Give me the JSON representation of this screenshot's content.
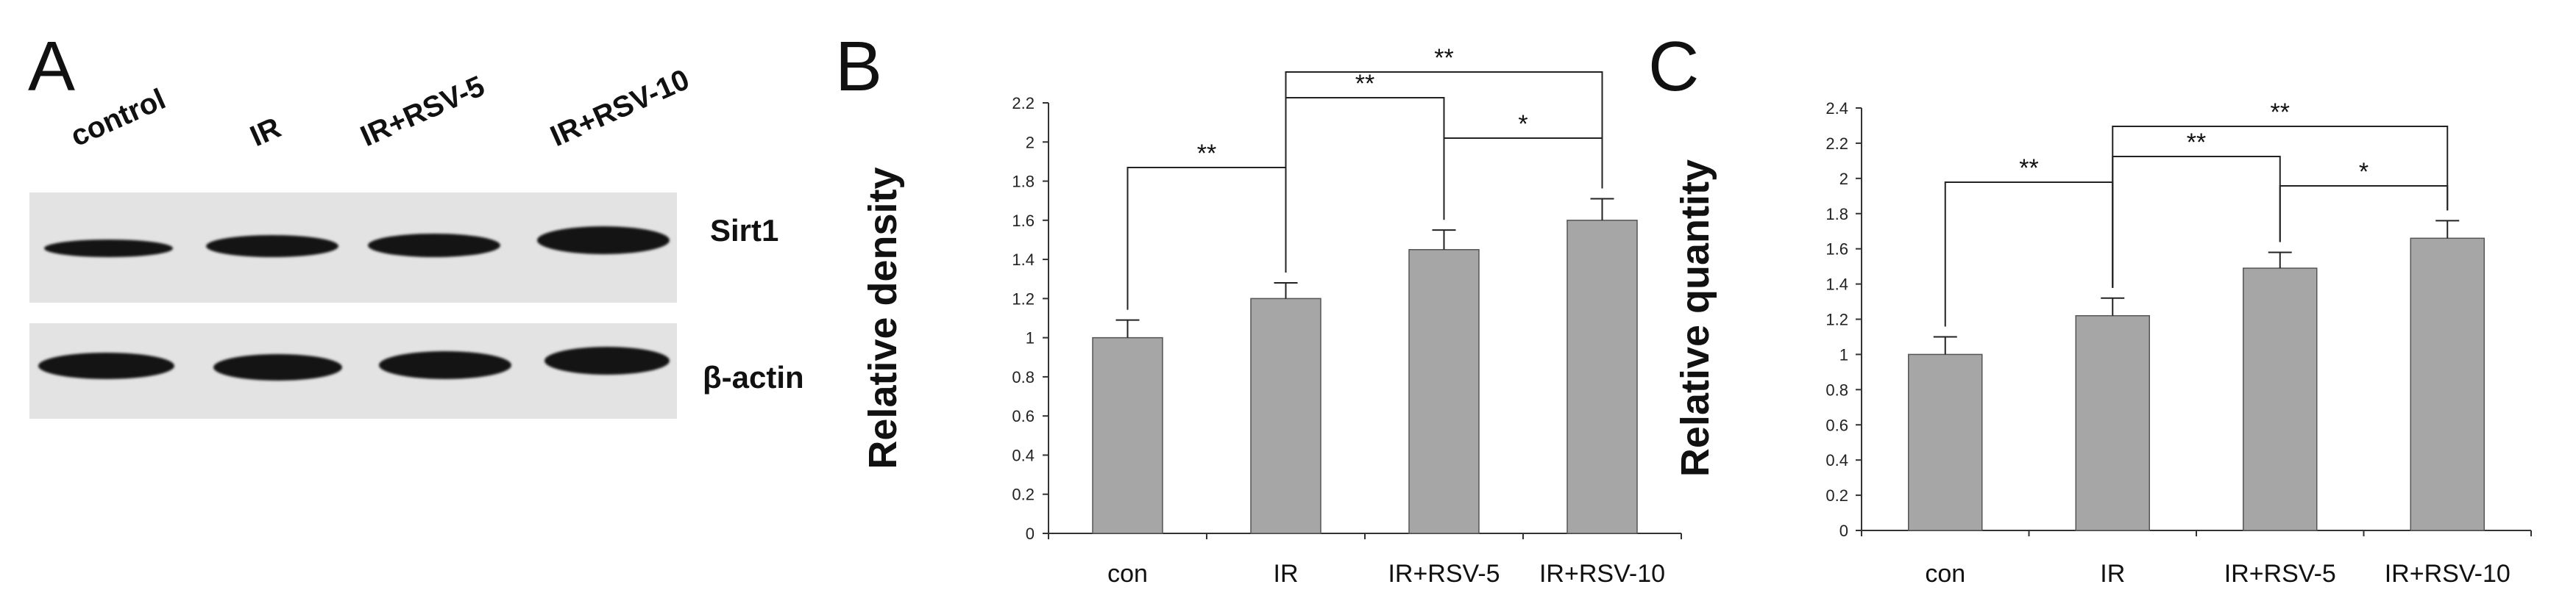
{
  "panels": {
    "a_letter": "A",
    "b_letter": "B",
    "c_letter": "C"
  },
  "blot": {
    "lanes": [
      "control",
      "IR",
      "IR+RSV-5",
      "IR+RSV-10"
    ],
    "rows": [
      "Sirt1",
      "β-actin"
    ]
  },
  "chart_data": [
    {
      "type": "bar",
      "panel": "B",
      "categories": [
        "con",
        "IR",
        "IR+RSV-5",
        "IR+RSV-10"
      ],
      "values": [
        1.0,
        1.2,
        1.45,
        1.6
      ],
      "errors": [
        0.09,
        0.08,
        0.1,
        0.11
      ],
      "ylabel": "Relative density",
      "ylim": [
        0,
        2.2
      ],
      "yticks": [
        "0",
        "0.2",
        "0.4",
        "0.6",
        "0.8",
        "1",
        "1.2",
        "1.4",
        "1.6",
        "1.8",
        "2",
        "2.2"
      ],
      "bar_color": "#a6a6a6",
      "significance": [
        {
          "from": 0,
          "to": 1,
          "label": "**"
        },
        {
          "from": 1,
          "to": 2,
          "label": "**"
        },
        {
          "from": 2,
          "to": 3,
          "label": "*"
        },
        {
          "from": 1,
          "to": 3,
          "label": "**"
        }
      ]
    },
    {
      "type": "bar",
      "panel": "C",
      "categories": [
        "con",
        "IR",
        "IR+RSV-5",
        "IR+RSV-10"
      ],
      "values": [
        1.0,
        1.22,
        1.49,
        1.66
      ],
      "errors": [
        0.1,
        0.1,
        0.09,
        0.1
      ],
      "ylabel": "Relative  quantity",
      "ylim": [
        0,
        2.4
      ],
      "yticks": [
        "0",
        "0.2",
        "0.4",
        "0.6",
        "0.8",
        "1",
        "1.2",
        "1.4",
        "1.6",
        "1.8",
        "2",
        "2.2",
        "2.4"
      ],
      "bar_color": "#a6a6a6",
      "significance": [
        {
          "from": 0,
          "to": 1,
          "label": "**"
        },
        {
          "from": 1,
          "to": 2,
          "label": "**"
        },
        {
          "from": 2,
          "to": 3,
          "label": "*"
        },
        {
          "from": 1,
          "to": 3,
          "label": "**"
        }
      ]
    }
  ]
}
